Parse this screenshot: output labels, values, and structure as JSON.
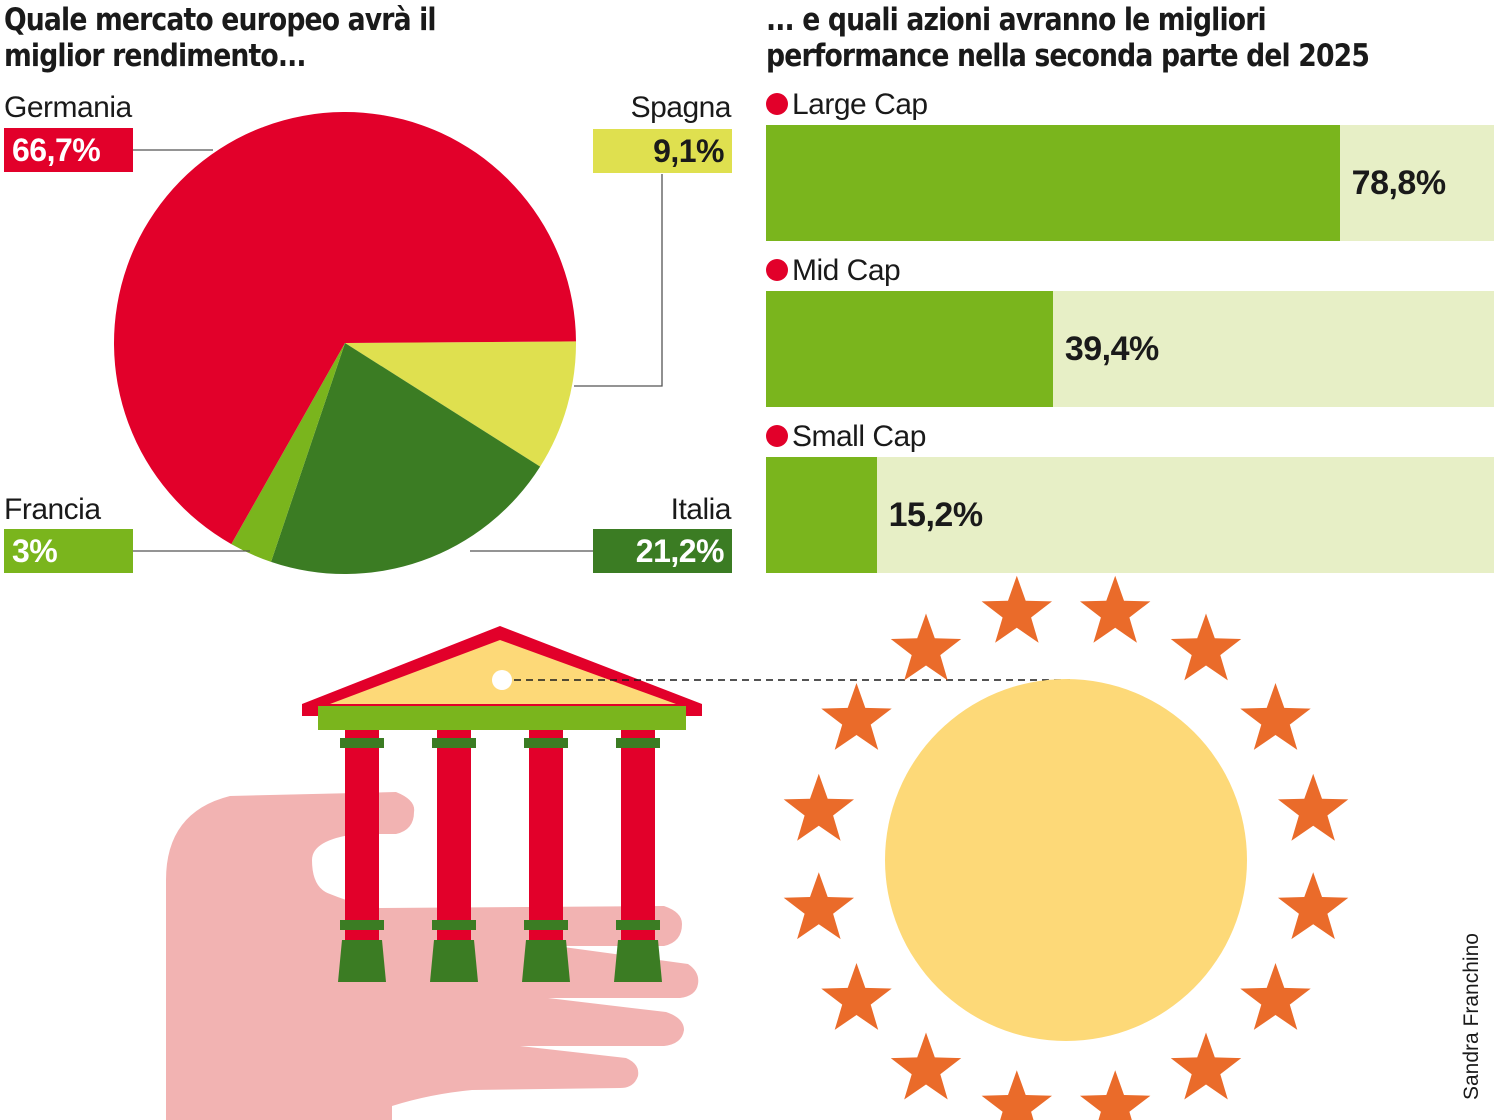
{
  "chart_data": [
    {
      "type": "pie",
      "title": "Quale mercato europeo avrà il miglior rendimento...",
      "slices": [
        {
          "name": "Germania",
          "value": 66.7,
          "label": "66,7%",
          "color": "#e2002a"
        },
        {
          "name": "Spagna",
          "value": 9.1,
          "label": "9,1%",
          "color": "#dfe04f"
        },
        {
          "name": "Italia",
          "value": 21.2,
          "label": "21,2%",
          "color": "#3b7c23"
        },
        {
          "name": "Francia",
          "value": 3,
          "label": "3%",
          "color": "#7ab51d"
        }
      ]
    },
    {
      "type": "bar",
      "orientation": "horizontal",
      "title": "... e quali azioni avranno le migliori performance nella seconda parte del 2025",
      "categories": [
        "Large Cap",
        "Mid Cap",
        "Small Cap"
      ],
      "values": [
        78.8,
        39.4,
        15.2
      ],
      "value_labels": [
        "78,8%",
        "39,4%",
        "15,2%"
      ],
      "xlim": [
        0,
        100
      ],
      "bar_color": "#7ab51d",
      "track_color": "#e7efc6"
    }
  ],
  "credit": "Sandra Franchino",
  "illustration": {
    "left": "hand holding a greek temple",
    "right": "sun surrounded by a ring of stars",
    "colors": {
      "temple_red": "#e2002a",
      "temple_green": "#3b7c23",
      "temple_lime": "#7ab51d",
      "pediment": "#fdd978",
      "hand": "#f2b3b2",
      "sun": "#fdd978",
      "stars": "#ea6b2a"
    }
  }
}
